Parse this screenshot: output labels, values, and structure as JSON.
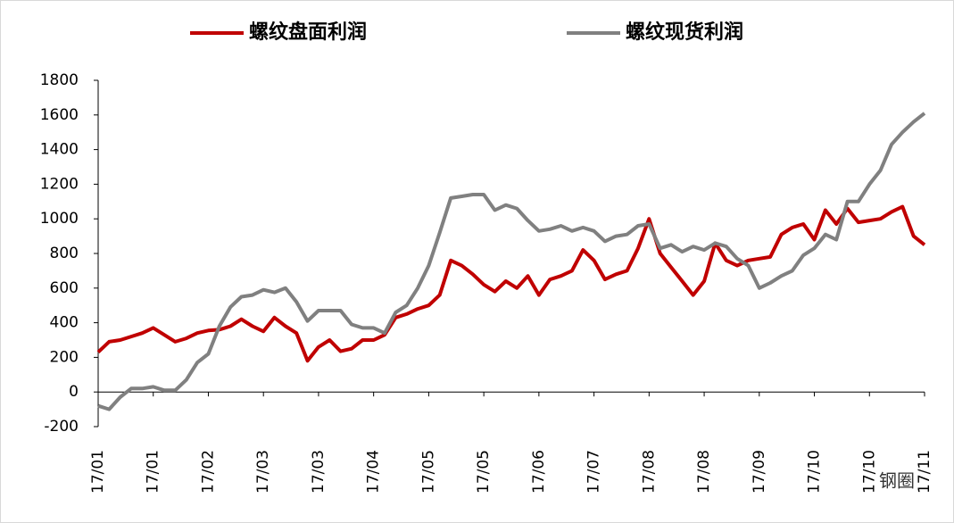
{
  "chart_data": {
    "type": "line",
    "categories": [
      "17/01",
      null,
      null,
      null,
      null,
      "17/01",
      null,
      null,
      null,
      null,
      "17/02",
      null,
      null,
      null,
      null,
      "17/03",
      null,
      null,
      null,
      null,
      "17/03",
      null,
      null,
      null,
      null,
      "17/04",
      null,
      null,
      null,
      null,
      "17/05",
      null,
      null,
      null,
      null,
      "17/05",
      null,
      null,
      null,
      null,
      "17/06",
      null,
      null,
      null,
      null,
      "17/07",
      null,
      null,
      null,
      null,
      "17/08",
      null,
      null,
      null,
      null,
      "17/08",
      null,
      null,
      null,
      null,
      "17/09",
      null,
      null,
      null,
      null,
      "17/10",
      null,
      null,
      null,
      null,
      "17/10",
      null,
      null,
      null,
      null,
      "17/11"
    ],
    "series": [
      {
        "name": "螺纹盘面利润",
        "color": "#c00000",
        "values": [
          230,
          290,
          300,
          320,
          340,
          370,
          330,
          290,
          310,
          340,
          355,
          360,
          380,
          420,
          380,
          350,
          430,
          380,
          340,
          180,
          260,
          300,
          235,
          250,
          300,
          300,
          330,
          430,
          450,
          480,
          500,
          560,
          760,
          730,
          680,
          620,
          580,
          640,
          600,
          670,
          560,
          650,
          670,
          700,
          820,
          760,
          650,
          680,
          700,
          830,
          1000,
          800,
          720,
          640,
          560,
          640,
          860,
          760,
          730,
          760,
          770,
          780,
          910,
          950,
          970,
          880,
          1050,
          970,
          1060,
          980,
          990,
          1000,
          1040,
          1070,
          900,
          850
        ]
      },
      {
        "name": "螺纹现货利润",
        "color": "#808080",
        "values": [
          -80,
          -100,
          -30,
          20,
          20,
          30,
          10,
          10,
          70,
          170,
          220,
          380,
          490,
          550,
          560,
          590,
          575,
          600,
          520,
          410,
          470,
          470,
          470,
          390,
          370,
          370,
          340,
          460,
          500,
          600,
          730,
          920,
          1120,
          1130,
          1140,
          1140,
          1050,
          1080,
          1060,
          990,
          930,
          940,
          960,
          930,
          950,
          930,
          870,
          900,
          910,
          960,
          970,
          830,
          850,
          810,
          840,
          820,
          860,
          840,
          770,
          730,
          600,
          630,
          670,
          700,
          790,
          830,
          910,
          880,
          1100,
          1100,
          1200,
          1280,
          1430,
          1500,
          1560,
          1610
        ]
      }
    ],
    "ylim": [
      -200,
      1800
    ],
    "yticks": [
      -200,
      0,
      200,
      400,
      600,
      800,
      1000,
      1200,
      1400,
      1600,
      1800
    ],
    "legend": "top",
    "watermark": "钢圈"
  }
}
